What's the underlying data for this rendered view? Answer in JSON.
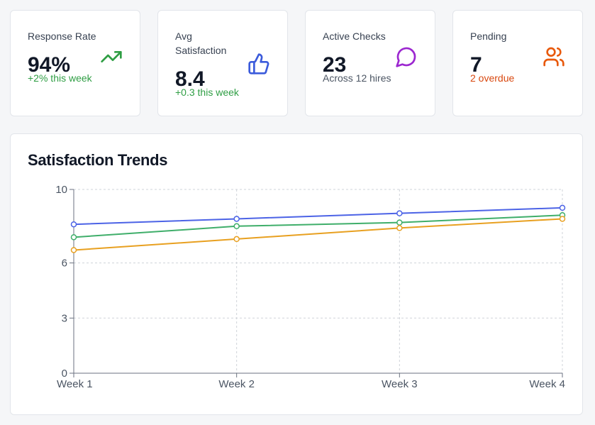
{
  "stats": {
    "response_rate": {
      "label": "Response Rate",
      "value": "94%",
      "sub": "+2% this week",
      "sub_color": "#2f9e44",
      "icon": "trending-up-icon",
      "icon_color": "#2f9e44"
    },
    "avg_satisfaction": {
      "label": "Avg Satisfaction",
      "value": "8.4",
      "sub": "+0.3 this week",
      "sub_color": "#2f9e44",
      "icon": "thumbs-up-icon",
      "icon_color": "#3b5bdb"
    },
    "active_checks": {
      "label": "Active Checks",
      "value": "23",
      "sub": "Across 12 hires",
      "sub_color": "#4b5563",
      "icon": "message-circle-icon",
      "icon_color": "#9c27d0"
    },
    "pending": {
      "label": "Pending",
      "value": "7",
      "sub": "2 overdue",
      "sub_color": "#d9480f",
      "icon": "users-icon",
      "icon_color": "#e8590c"
    }
  },
  "chart_data": {
    "type": "line",
    "title": "Satisfaction Trends",
    "categories": [
      "Week 1",
      "Week 2",
      "Week 3",
      "Week 4"
    ],
    "ylim": [
      0,
      10
    ],
    "yticks": [
      0,
      3,
      6,
      10
    ],
    "grid": true,
    "series": [
      {
        "values": [
          8.1,
          8.4,
          8.7,
          9.0
        ],
        "color": "#4c63e6"
      },
      {
        "values": [
          7.4,
          8.0,
          8.2,
          8.6
        ],
        "color": "#3fae6a"
      },
      {
        "values": [
          6.7,
          7.3,
          7.9,
          8.4
        ],
        "color": "#e8a020"
      }
    ]
  }
}
